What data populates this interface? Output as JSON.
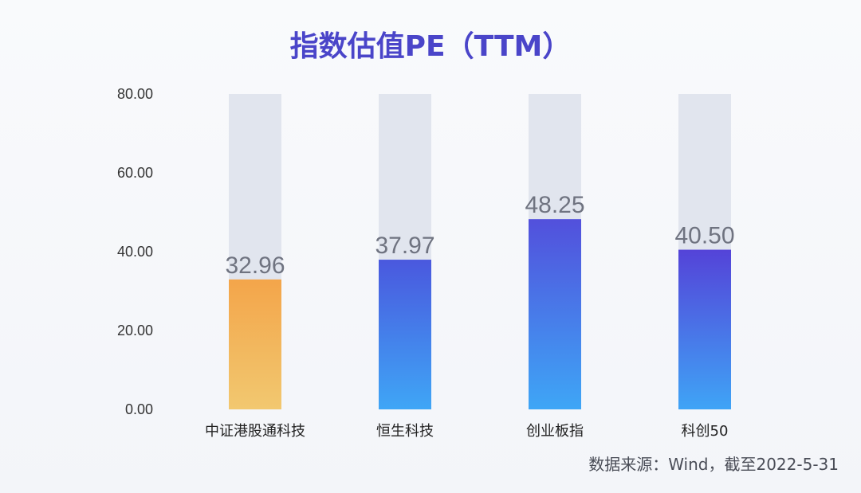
{
  "chart_data": {
    "type": "bar",
    "title": "指数估值PE（TTM）",
    "categories": [
      "中证港股通科技",
      "恒生科技",
      "创业板指",
      "科创50"
    ],
    "values": [
      32.96,
      37.97,
      48.25,
      40.5
    ],
    "value_labels": [
      "32.96",
      "37.97",
      "48.25",
      "40.50"
    ],
    "ylim": [
      0,
      80
    ],
    "yticks": [
      "0.00",
      "20.00",
      "40.00",
      "60.00",
      "80.00"
    ],
    "xlabel": "",
    "ylabel": "",
    "grid": false,
    "legend": "none",
    "background_bar_color": "#e1e5ee",
    "bar_gradients": [
      {
        "top": "#f3a54a",
        "bottom": "#f2c870"
      },
      {
        "top": "#4a58de",
        "bottom": "#3fa6f6"
      },
      {
        "top": "#5250dc",
        "bottom": "#3ea6f6"
      },
      {
        "top": "#5443d8",
        "bottom": "#3fa4f6"
      }
    ],
    "source_note": "数据来源：Wind，截至2022-5-31"
  }
}
